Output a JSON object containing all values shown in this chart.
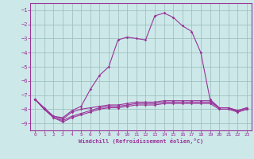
{
  "xlabel": "Windchill (Refroidissement éolien,°C)",
  "xlim": [
    -0.5,
    23.5
  ],
  "ylim": [
    -9.5,
    -0.5
  ],
  "yticks": [
    -9,
    -8,
    -7,
    -6,
    -5,
    -4,
    -3,
    -2,
    -1
  ],
  "xticks": [
    0,
    1,
    2,
    3,
    4,
    5,
    6,
    7,
    8,
    9,
    10,
    11,
    12,
    13,
    14,
    15,
    16,
    17,
    18,
    19,
    20,
    21,
    22,
    23
  ],
  "bg_color": "#cce8e8",
  "line_color": "#993399",
  "grid_color": "#99bbbb",
  "lines": [
    [
      -7.3,
      -7.9,
      -8.5,
      -8.6,
      -8.1,
      -7.8,
      -6.6,
      -5.6,
      -5.0,
      -3.1,
      -2.9,
      -3.0,
      -3.1,
      -1.4,
      -1.2,
      -1.5,
      -2.1,
      -2.5,
      -4.0,
      -7.3,
      -7.9,
      -7.9,
      -8.1,
      -7.9
    ],
    [
      -7.3,
      -8.0,
      -8.5,
      -8.7,
      -8.2,
      -8.0,
      -7.9,
      -7.8,
      -7.7,
      -7.7,
      -7.6,
      -7.5,
      -7.5,
      -7.5,
      -7.4,
      -7.4,
      -7.4,
      -7.4,
      -7.4,
      -7.4,
      -7.9,
      -7.9,
      -8.1,
      -7.9
    ],
    [
      -7.3,
      -8.0,
      -8.6,
      -8.8,
      -8.5,
      -8.3,
      -8.1,
      -7.9,
      -7.8,
      -7.8,
      -7.7,
      -7.6,
      -7.6,
      -7.6,
      -7.5,
      -7.5,
      -7.5,
      -7.5,
      -7.5,
      -7.5,
      -7.9,
      -7.9,
      -8.2,
      -8.0
    ],
    [
      -7.3,
      -8.0,
      -8.6,
      -8.9,
      -8.6,
      -8.4,
      -8.2,
      -8.0,
      -7.9,
      -7.9,
      -7.8,
      -7.7,
      -7.7,
      -7.7,
      -7.6,
      -7.6,
      -7.6,
      -7.6,
      -7.6,
      -7.6,
      -8.0,
      -8.0,
      -8.2,
      -8.0
    ]
  ]
}
